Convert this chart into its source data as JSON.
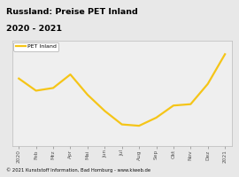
{
  "title_line1": "Russland: Preise PET Inland",
  "title_line2": "2020 - 2021",
  "title_bg_color": "#F5C518",
  "title_text_color": "#000000",
  "footer_text": "© 2021 Kunststoff Information, Bad Homburg - www.kiweb.de",
  "footer_bg_color": "#AAAAAA",
  "plot_bg_color": "#EFEFEF",
  "fig_bg_color": "#E8E8E8",
  "line_color": "#F5C518",
  "line_label": "PET Inland",
  "x_labels": [
    "2020",
    "Feb",
    "Mrz",
    "Apr",
    "Mai",
    "Jun",
    "Jul",
    "Aug",
    "Sep",
    "Okt",
    "Nov",
    "Dez",
    "2021"
  ],
  "y_values": [
    72,
    63,
    65,
    75,
    60,
    48,
    38,
    37,
    43,
    52,
    53,
    68,
    90
  ],
  "grid_color": "#FFFFFF",
  "title_fontsize": 6.8,
  "tick_fontsize": 4.2,
  "footer_fontsize": 3.8,
  "legend_fontsize": 4.5
}
